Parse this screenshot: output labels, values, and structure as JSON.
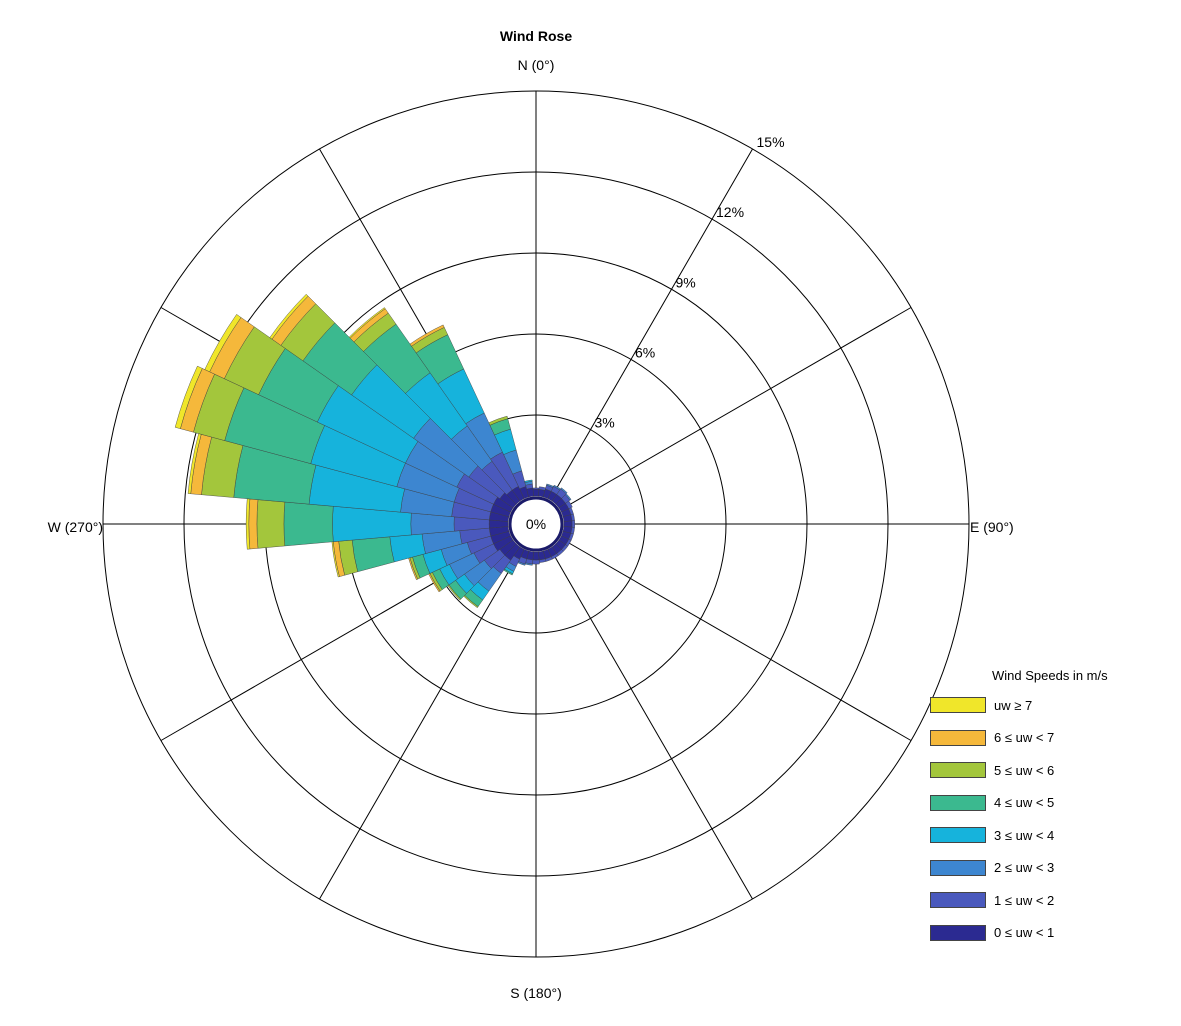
{
  "chart_data": {
    "type": "polar-stacked-bar",
    "title": "Wind Rose",
    "direction_labels": {
      "north": "N (0°)",
      "east": "E (90°)",
      "south": "S (180°)",
      "west": "W (270°)"
    },
    "radial_unit": "%",
    "radial_ticks": [
      {
        "value": 0,
        "label": "0%"
      },
      {
        "value": 3,
        "label": "3%"
      },
      {
        "value": 6,
        "label": "6%"
      },
      {
        "value": 9,
        "label": "9%"
      },
      {
        "value": 12,
        "label": "12%"
      },
      {
        "value": 15,
        "label": "15%"
      }
    ],
    "radial_max": 15,
    "spoke_angles_deg": [
      0,
      30,
      60,
      90,
      120,
      150,
      180,
      210,
      240,
      270,
      300,
      330
    ],
    "bin_width_deg": 10,
    "legend": {
      "title": "Wind Speeds in m/s",
      "placement": "bottom-right",
      "items": [
        {
          "label": "uw ≥ 7",
          "color": "#f0e62a"
        },
        {
          "label": "6 ≤ uw < 7",
          "color": "#f5b83b"
        },
        {
          "label": "5 ≤ uw < 6",
          "color": "#a3c63c"
        },
        {
          "label": "4 ≤ uw < 5",
          "color": "#3bb98f"
        },
        {
          "label": "3 ≤ uw < 4",
          "color": "#16b3dc"
        },
        {
          "label": "2 ≤ uw < 3",
          "color": "#3d86d0"
        },
        {
          "label": "1 ≤ uw < 2",
          "color": "#4a59bd"
        },
        {
          "label": "0 ≤ uw < 1",
          "color": "#2b2a91"
        }
      ]
    },
    "series_order": [
      "0–1",
      "1–2",
      "2–3",
      "3–4",
      "4–5",
      "5–6",
      "6–7",
      "≥7"
    ],
    "bins": [
      {
        "direction": 0,
        "values": [
          0.25,
          0.05,
          0,
          0,
          0,
          0,
          0,
          0
        ]
      },
      {
        "direction": 10,
        "values": [
          0.25,
          0.1,
          0,
          0,
          0,
          0,
          0,
          0
        ]
      },
      {
        "direction": 20,
        "values": [
          0.3,
          0.15,
          0.05,
          0,
          0,
          0,
          0,
          0
        ]
      },
      {
        "direction": 30,
        "values": [
          0.3,
          0.2,
          0.05,
          0,
          0,
          0,
          0,
          0
        ]
      },
      {
        "direction": 40,
        "values": [
          0.3,
          0.25,
          0.05,
          0,
          0,
          0,
          0,
          0
        ]
      },
      {
        "direction": 50,
        "values": [
          0.3,
          0.2,
          0.05,
          0,
          0,
          0,
          0,
          0
        ]
      },
      {
        "direction": 60,
        "values": [
          0.3,
          0.15,
          0,
          0,
          0,
          0,
          0,
          0
        ]
      },
      {
        "direction": 70,
        "values": [
          0.3,
          0.1,
          0,
          0,
          0,
          0,
          0,
          0
        ]
      },
      {
        "direction": 80,
        "values": [
          0.3,
          0.1,
          0,
          0,
          0,
          0,
          0,
          0
        ]
      },
      {
        "direction": 90,
        "values": [
          0.3,
          0.1,
          0,
          0,
          0,
          0,
          0,
          0
        ]
      },
      {
        "direction": 100,
        "values": [
          0.3,
          0.1,
          0,
          0,
          0,
          0,
          0,
          0
        ]
      },
      {
        "direction": 110,
        "values": [
          0.3,
          0.1,
          0,
          0,
          0,
          0,
          0,
          0
        ]
      },
      {
        "direction": 120,
        "values": [
          0.3,
          0.1,
          0,
          0,
          0,
          0,
          0,
          0
        ]
      },
      {
        "direction": 130,
        "values": [
          0.3,
          0.1,
          0,
          0,
          0,
          0,
          0,
          0
        ]
      },
      {
        "direction": 140,
        "values": [
          0.3,
          0.1,
          0,
          0,
          0,
          0,
          0,
          0
        ]
      },
      {
        "direction": 150,
        "values": [
          0.3,
          0.1,
          0,
          0,
          0,
          0,
          0,
          0
        ]
      },
      {
        "direction": 160,
        "values": [
          0.3,
          0.1,
          0,
          0,
          0,
          0,
          0,
          0
        ]
      },
      {
        "direction": 170,
        "values": [
          0.3,
          0.1,
          0,
          0,
          0,
          0,
          0,
          0
        ]
      },
      {
        "direction": 180,
        "values": [
          0.3,
          0.15,
          0,
          0,
          0,
          0,
          0,
          0
        ]
      },
      {
        "direction": 190,
        "values": [
          0.3,
          0.15,
          0.05,
          0,
          0,
          0,
          0,
          0
        ]
      },
      {
        "direction": 200,
        "values": [
          0.3,
          0.2,
          0.05,
          0,
          0,
          0,
          0,
          0
        ]
      },
      {
        "direction": 210,
        "values": [
          0.4,
          0.3,
          0.2,
          0.1,
          0.05,
          0,
          0,
          0
        ]
      },
      {
        "direction": 220,
        "values": [
          0.6,
          0.6,
          0.8,
          0.4,
          0.3,
          0.05,
          0,
          0
        ]
      },
      {
        "direction": 230,
        "values": [
          0.6,
          0.7,
          0.9,
          0.4,
          0.3,
          0.05,
          0,
          0
        ]
      },
      {
        "direction": 240,
        "values": [
          0.7,
          0.8,
          1.0,
          0.4,
          0.3,
          0.1,
          0.05,
          0
        ]
      },
      {
        "direction": 250,
        "values": [
          0.7,
          0.9,
          1.0,
          0.7,
          0.4,
          0.1,
          0.05,
          0
        ]
      },
      {
        "direction": 260,
        "values": [
          0.7,
          1.1,
          1.4,
          1.2,
          1.4,
          0.5,
          0.2,
          0.05
        ]
      },
      {
        "direction": 270,
        "values": [
          0.7,
          1.3,
          1.6,
          2.9,
          1.8,
          1.0,
          0.3,
          0.1
        ]
      },
      {
        "direction": 280,
        "values": [
          0.7,
          1.4,
          1.9,
          3.4,
          2.8,
          1.2,
          0.4,
          0.1
        ]
      },
      {
        "direction": 290,
        "values": [
          0.7,
          1.4,
          2.2,
          3.3,
          3.3,
          1.2,
          0.5,
          0.2
        ]
      },
      {
        "direction": 300,
        "values": [
          0.7,
          1.5,
          2.1,
          3.6,
          2.4,
          1.4,
          0.6,
          0.2
        ]
      },
      {
        "direction": 310,
        "values": [
          0.6,
          1.4,
          2.5,
          2.8,
          2.2,
          1.0,
          0.4,
          0.1
        ]
      },
      {
        "direction": 320,
        "values": [
          0.5,
          1.3,
          1.6,
          2.4,
          2.2,
          0.5,
          0.2,
          0.05
        ]
      },
      {
        "direction": 330,
        "values": [
          0.5,
          1.4,
          1.6,
          1.8,
          1.4,
          0.3,
          0.1,
          0
        ]
      },
      {
        "direction": 340,
        "values": [
          0.4,
          0.6,
          0.8,
          0.8,
          0.4,
          0.1,
          0,
          0
        ]
      },
      {
        "direction": 350,
        "values": [
          0.3,
          0.15,
          0.1,
          0.05,
          0,
          0,
          0,
          0
        ]
      }
    ]
  }
}
